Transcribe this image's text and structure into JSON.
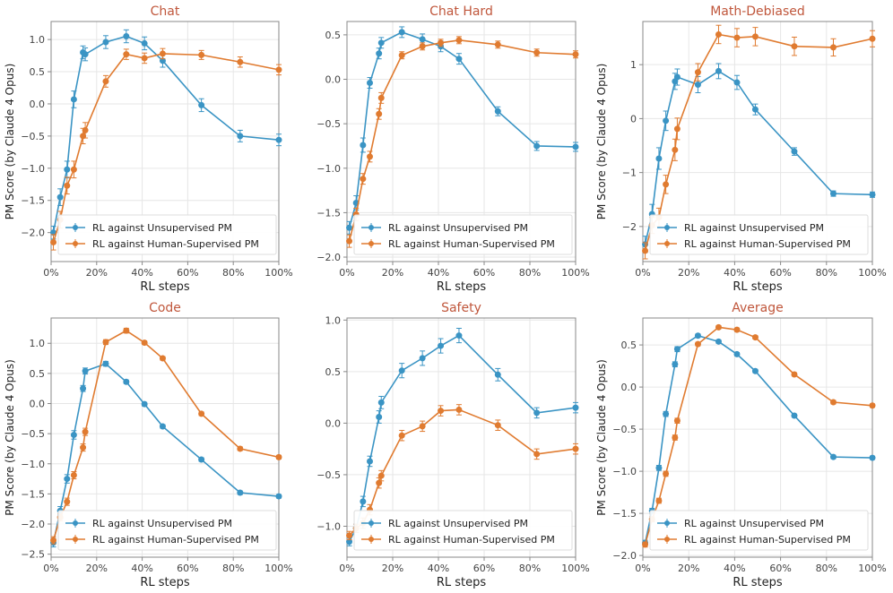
{
  "figure": {
    "series_colors": [
      "#3a94c4",
      "#e07b30"
    ],
    "title_color": "#c0573c",
    "grid_color": "#e6e6e6",
    "axis_color": "#888888"
  },
  "chart_data": [
    {
      "type": "line",
      "title": "Chat",
      "xlabel": "RL steps",
      "ylabel": "PM Score (by Claude 4 Opus)",
      "xlim": [
        0,
        100
      ],
      "ylim": [
        -2.45,
        1.28
      ],
      "x_ticks": [
        0,
        20,
        40,
        60,
        80,
        100
      ],
      "x_tick_labels": [
        "0%",
        "20%",
        "40%",
        "60%",
        "80%",
        "100%"
      ],
      "y_ticks": [
        -2.0,
        -1.5,
        -1.0,
        -0.5,
        0.0,
        0.5,
        1.0
      ],
      "y_tick_labels": [
        "−2.0",
        "−1.5",
        "−1.0",
        "−0.5",
        "0.0",
        "0.5",
        "1.0"
      ],
      "legend": "bottom-left",
      "series": [
        {
          "name": "RL against Unsupervised PM",
          "x": [
            1,
            4,
            7,
            10,
            14,
            15,
            24,
            33,
            41,
            49,
            66,
            83,
            100
          ],
          "y": [
            -2.0,
            -1.45,
            -1.02,
            0.07,
            0.8,
            0.77,
            0.96,
            1.05,
            0.94,
            0.67,
            -0.02,
            -0.5,
            -0.56
          ],
          "err": [
            0.1,
            0.13,
            0.13,
            0.13,
            0.1,
            0.1,
            0.1,
            0.1,
            0.1,
            0.1,
            0.1,
            0.09,
            0.09
          ]
        },
        {
          "name": "RL against Human-Supervised PM",
          "x": [
            1,
            4,
            7,
            10,
            14,
            15,
            24,
            33,
            41,
            49,
            66,
            83,
            100
          ],
          "y": [
            -2.15,
            -1.8,
            -1.27,
            -1.02,
            -0.5,
            -0.41,
            0.35,
            0.77,
            0.71,
            0.78,
            0.76,
            0.65,
            0.53
          ],
          "err": [
            0.12,
            0.13,
            0.13,
            0.13,
            0.12,
            0.12,
            0.09,
            0.08,
            0.08,
            0.08,
            0.07,
            0.08,
            0.08
          ]
        }
      ]
    },
    {
      "type": "line",
      "title": "Chat Hard",
      "xlabel": "RL steps",
      "ylabel": "",
      "xlim": [
        0,
        100
      ],
      "ylim": [
        -2.05,
        0.65
      ],
      "x_ticks": [
        0,
        20,
        40,
        60,
        80,
        100
      ],
      "x_tick_labels": [
        "0%",
        "20%",
        "40%",
        "60%",
        "80%",
        "100%"
      ],
      "y_ticks": [
        -2.0,
        -1.5,
        -1.0,
        -0.5,
        0.0,
        0.5
      ],
      "y_tick_labels": [
        "−2.0",
        "−1.5",
        "−1.0",
        "−0.5",
        "0.0",
        "0.5"
      ],
      "legend": "bottom-left",
      "series": [
        {
          "name": "RL against Unsupervised PM",
          "x": [
            1,
            4,
            7,
            10,
            14,
            15,
            24,
            33,
            41,
            49,
            66,
            83,
            100
          ],
          "y": [
            -1.67,
            -1.39,
            -0.74,
            -0.04,
            0.29,
            0.41,
            0.53,
            0.45,
            0.37,
            0.23,
            -0.36,
            -0.75,
            -0.76
          ],
          "err": [
            0.07,
            0.08,
            0.08,
            0.06,
            0.06,
            0.06,
            0.06,
            0.06,
            0.06,
            0.06,
            0.05,
            0.05,
            0.05
          ]
        },
        {
          "name": "RL against Human-Supervised PM",
          "x": [
            1,
            4,
            7,
            10,
            14,
            15,
            24,
            33,
            41,
            49,
            66,
            83,
            100
          ],
          "y": [
            -1.82,
            -1.52,
            -1.12,
            -0.87,
            -0.39,
            -0.21,
            0.27,
            0.37,
            0.41,
            0.44,
            0.39,
            0.3,
            0.28
          ],
          "err": [
            0.07,
            0.07,
            0.06,
            0.06,
            0.06,
            0.06,
            0.04,
            0.04,
            0.04,
            0.04,
            0.04,
            0.04,
            0.04
          ]
        }
      ]
    },
    {
      "type": "line",
      "title": "Math-Debiased",
      "xlabel": "RL steps",
      "ylabel": "PM Score (by Claude 4 Opus)",
      "xlim": [
        0,
        100
      ],
      "ylim": [
        -2.65,
        1.8
      ],
      "x_ticks": [
        0,
        20,
        40,
        60,
        80,
        100
      ],
      "x_tick_labels": [
        "0%",
        "20%",
        "40%",
        "60%",
        "80%",
        "100%"
      ],
      "y_ticks": [
        -2,
        -1,
        0,
        1
      ],
      "y_tick_labels": [
        "−2",
        "−1",
        "0",
        "1"
      ],
      "legend": "bottom-left",
      "series": [
        {
          "name": "RL against Unsupervised PM",
          "x": [
            1,
            4,
            7,
            10,
            14,
            15,
            24,
            33,
            41,
            49,
            66,
            83,
            100
          ],
          "y": [
            -2.33,
            -1.77,
            -0.74,
            -0.04,
            0.69,
            0.77,
            0.63,
            0.88,
            0.67,
            0.17,
            -0.61,
            -1.39,
            -1.41
          ],
          "err": [
            0.15,
            0.18,
            0.2,
            0.18,
            0.15,
            0.15,
            0.15,
            0.14,
            0.13,
            0.1,
            0.07,
            0.05,
            0.05
          ]
        },
        {
          "name": "RL against Human-Supervised PM",
          "x": [
            1,
            4,
            7,
            10,
            14,
            15,
            24,
            33,
            41,
            49,
            66,
            83,
            100
          ],
          "y": [
            -2.45,
            -1.98,
            -1.83,
            -1.22,
            -0.58,
            -0.19,
            0.86,
            1.56,
            1.5,
            1.52,
            1.34,
            1.32,
            1.48
          ],
          "err": [
            0.15,
            0.15,
            0.17,
            0.17,
            0.2,
            0.2,
            0.16,
            0.17,
            0.17,
            0.17,
            0.17,
            0.16,
            0.15
          ]
        }
      ]
    },
    {
      "type": "line",
      "title": "Code",
      "xlabel": "RL steps",
      "ylabel": "PM Score (by Claude 4 Opus)",
      "xlim": [
        0,
        100
      ],
      "ylim": [
        -2.55,
        1.42
      ],
      "x_ticks": [
        0,
        20,
        40,
        60,
        80,
        100
      ],
      "x_tick_labels": [
        "0%",
        "20%",
        "40%",
        "60%",
        "80%",
        "100%"
      ],
      "y_ticks": [
        -2.5,
        -2.0,
        -1.5,
        -1.0,
        -0.5,
        0.0,
        0.5,
        1.0
      ],
      "y_tick_labels": [
        "−2.5",
        "−2.0",
        "−1.5",
        "−1.0",
        "−0.5",
        "0.0",
        "0.5",
        "1.0"
      ],
      "legend": "bottom-left",
      "series": [
        {
          "name": "RL against Unsupervised PM",
          "x": [
            1,
            4,
            7,
            10,
            14,
            15,
            24,
            33,
            41,
            49,
            66,
            83,
            100
          ],
          "y": [
            -2.31,
            -1.78,
            -1.25,
            -0.52,
            0.25,
            0.54,
            0.66,
            0.36,
            -0.01,
            -0.38,
            -0.93,
            -1.48,
            -1.54
          ],
          "err": [
            0.07,
            0.07,
            0.07,
            0.07,
            0.05,
            0.05,
            0.04,
            0.03,
            0.03,
            0.03,
            0.03,
            0.03,
            0.03
          ]
        },
        {
          "name": "RL against Human-Supervised PM",
          "x": [
            1,
            4,
            7,
            10,
            14,
            15,
            24,
            33,
            41,
            49,
            66,
            83,
            100
          ],
          "y": [
            -2.27,
            -1.89,
            -1.63,
            -1.19,
            -0.73,
            -0.47,
            1.02,
            1.21,
            1.01,
            0.75,
            -0.17,
            -0.75,
            -0.89
          ],
          "err": [
            0.06,
            0.06,
            0.06,
            0.06,
            0.06,
            0.06,
            0.04,
            0.04,
            0.03,
            0.03,
            0.03,
            0.03,
            0.03
          ]
        }
      ]
    },
    {
      "type": "line",
      "title": "Safety",
      "xlabel": "RL steps",
      "ylabel": "",
      "xlim": [
        0,
        100
      ],
      "ylim": [
        -1.3,
        1.02
      ],
      "x_ticks": [
        0,
        20,
        40,
        60,
        80,
        100
      ],
      "x_tick_labels": [
        "0%",
        "20%",
        "40%",
        "60%",
        "80%",
        "100%"
      ],
      "y_ticks": [
        -1.0,
        -0.5,
        0.0,
        0.5,
        1.0
      ],
      "y_tick_labels": [
        "−1.0",
        "−0.5",
        "0.0",
        "0.5",
        "1.0"
      ],
      "legend": "bottom-left",
      "series": [
        {
          "name": "RL against Unsupervised PM",
          "x": [
            1,
            4,
            7,
            10,
            14,
            15,
            24,
            33,
            41,
            49,
            66,
            83,
            100
          ],
          "y": [
            -1.15,
            -1.02,
            -0.76,
            -0.37,
            0.06,
            0.2,
            0.51,
            0.63,
            0.75,
            0.85,
            0.47,
            0.1,
            0.15
          ],
          "err": [
            0.04,
            0.04,
            0.05,
            0.05,
            0.06,
            0.06,
            0.07,
            0.07,
            0.07,
            0.07,
            0.06,
            0.05,
            0.05
          ]
        },
        {
          "name": "RL against Human-Supervised PM",
          "x": [
            1,
            4,
            7,
            10,
            14,
            15,
            24,
            33,
            41,
            49,
            66,
            83,
            100
          ],
          "y": [
            -1.09,
            -1.02,
            -0.97,
            -0.84,
            -0.58,
            -0.51,
            -0.12,
            -0.03,
            0.12,
            0.13,
            -0.02,
            -0.3,
            -0.25
          ],
          "err": [
            0.04,
            0.04,
            0.05,
            0.05,
            0.05,
            0.05,
            0.05,
            0.05,
            0.05,
            0.05,
            0.05,
            0.05,
            0.05
          ]
        }
      ]
    },
    {
      "type": "line",
      "title": "Average",
      "xlabel": "RL steps",
      "ylabel": "PM Score (by Claude 4 Opus)",
      "xlim": [
        0,
        100
      ],
      "ylim": [
        -2.02,
        0.82
      ],
      "x_ticks": [
        0,
        20,
        40,
        60,
        80,
        100
      ],
      "x_tick_labels": [
        "0%",
        "20%",
        "40%",
        "60%",
        "80%",
        "100%"
      ],
      "y_ticks": [
        -2.0,
        -1.5,
        -1.0,
        -0.5,
        0.0,
        0.5
      ],
      "y_tick_labels": [
        "−2.0",
        "−1.5",
        "−1.0",
        "−0.5",
        "0.0",
        "0.5"
      ],
      "legend": "bottom-left",
      "series": [
        {
          "name": "RL against Unsupervised PM",
          "x": [
            1,
            4,
            7,
            10,
            14,
            15,
            24,
            33,
            41,
            49,
            66,
            83,
            100
          ],
          "y": [
            -1.85,
            -1.47,
            -0.96,
            -0.32,
            0.27,
            0.45,
            0.61,
            0.54,
            0.39,
            0.19,
            -0.34,
            -0.83,
            -0.84
          ],
          "err": [
            0.03,
            0.03,
            0.03,
            0.03,
            0.03,
            0.03,
            0.02,
            0.02,
            0.02,
            0.02,
            0.02,
            0.02,
            0.02
          ]
        },
        {
          "name": "RL against Human-Supervised PM",
          "x": [
            1,
            4,
            7,
            10,
            14,
            15,
            24,
            33,
            41,
            49,
            66,
            83,
            100
          ],
          "y": [
            -1.87,
            -1.57,
            -1.35,
            -1.03,
            -0.6,
            -0.4,
            0.51,
            0.71,
            0.68,
            0.59,
            0.15,
            -0.18,
            -0.22
          ],
          "err": [
            0.03,
            0.03,
            0.03,
            0.03,
            0.03,
            0.03,
            0.02,
            0.02,
            0.02,
            0.02,
            0.02,
            0.02,
            0.02
          ]
        }
      ]
    }
  ]
}
